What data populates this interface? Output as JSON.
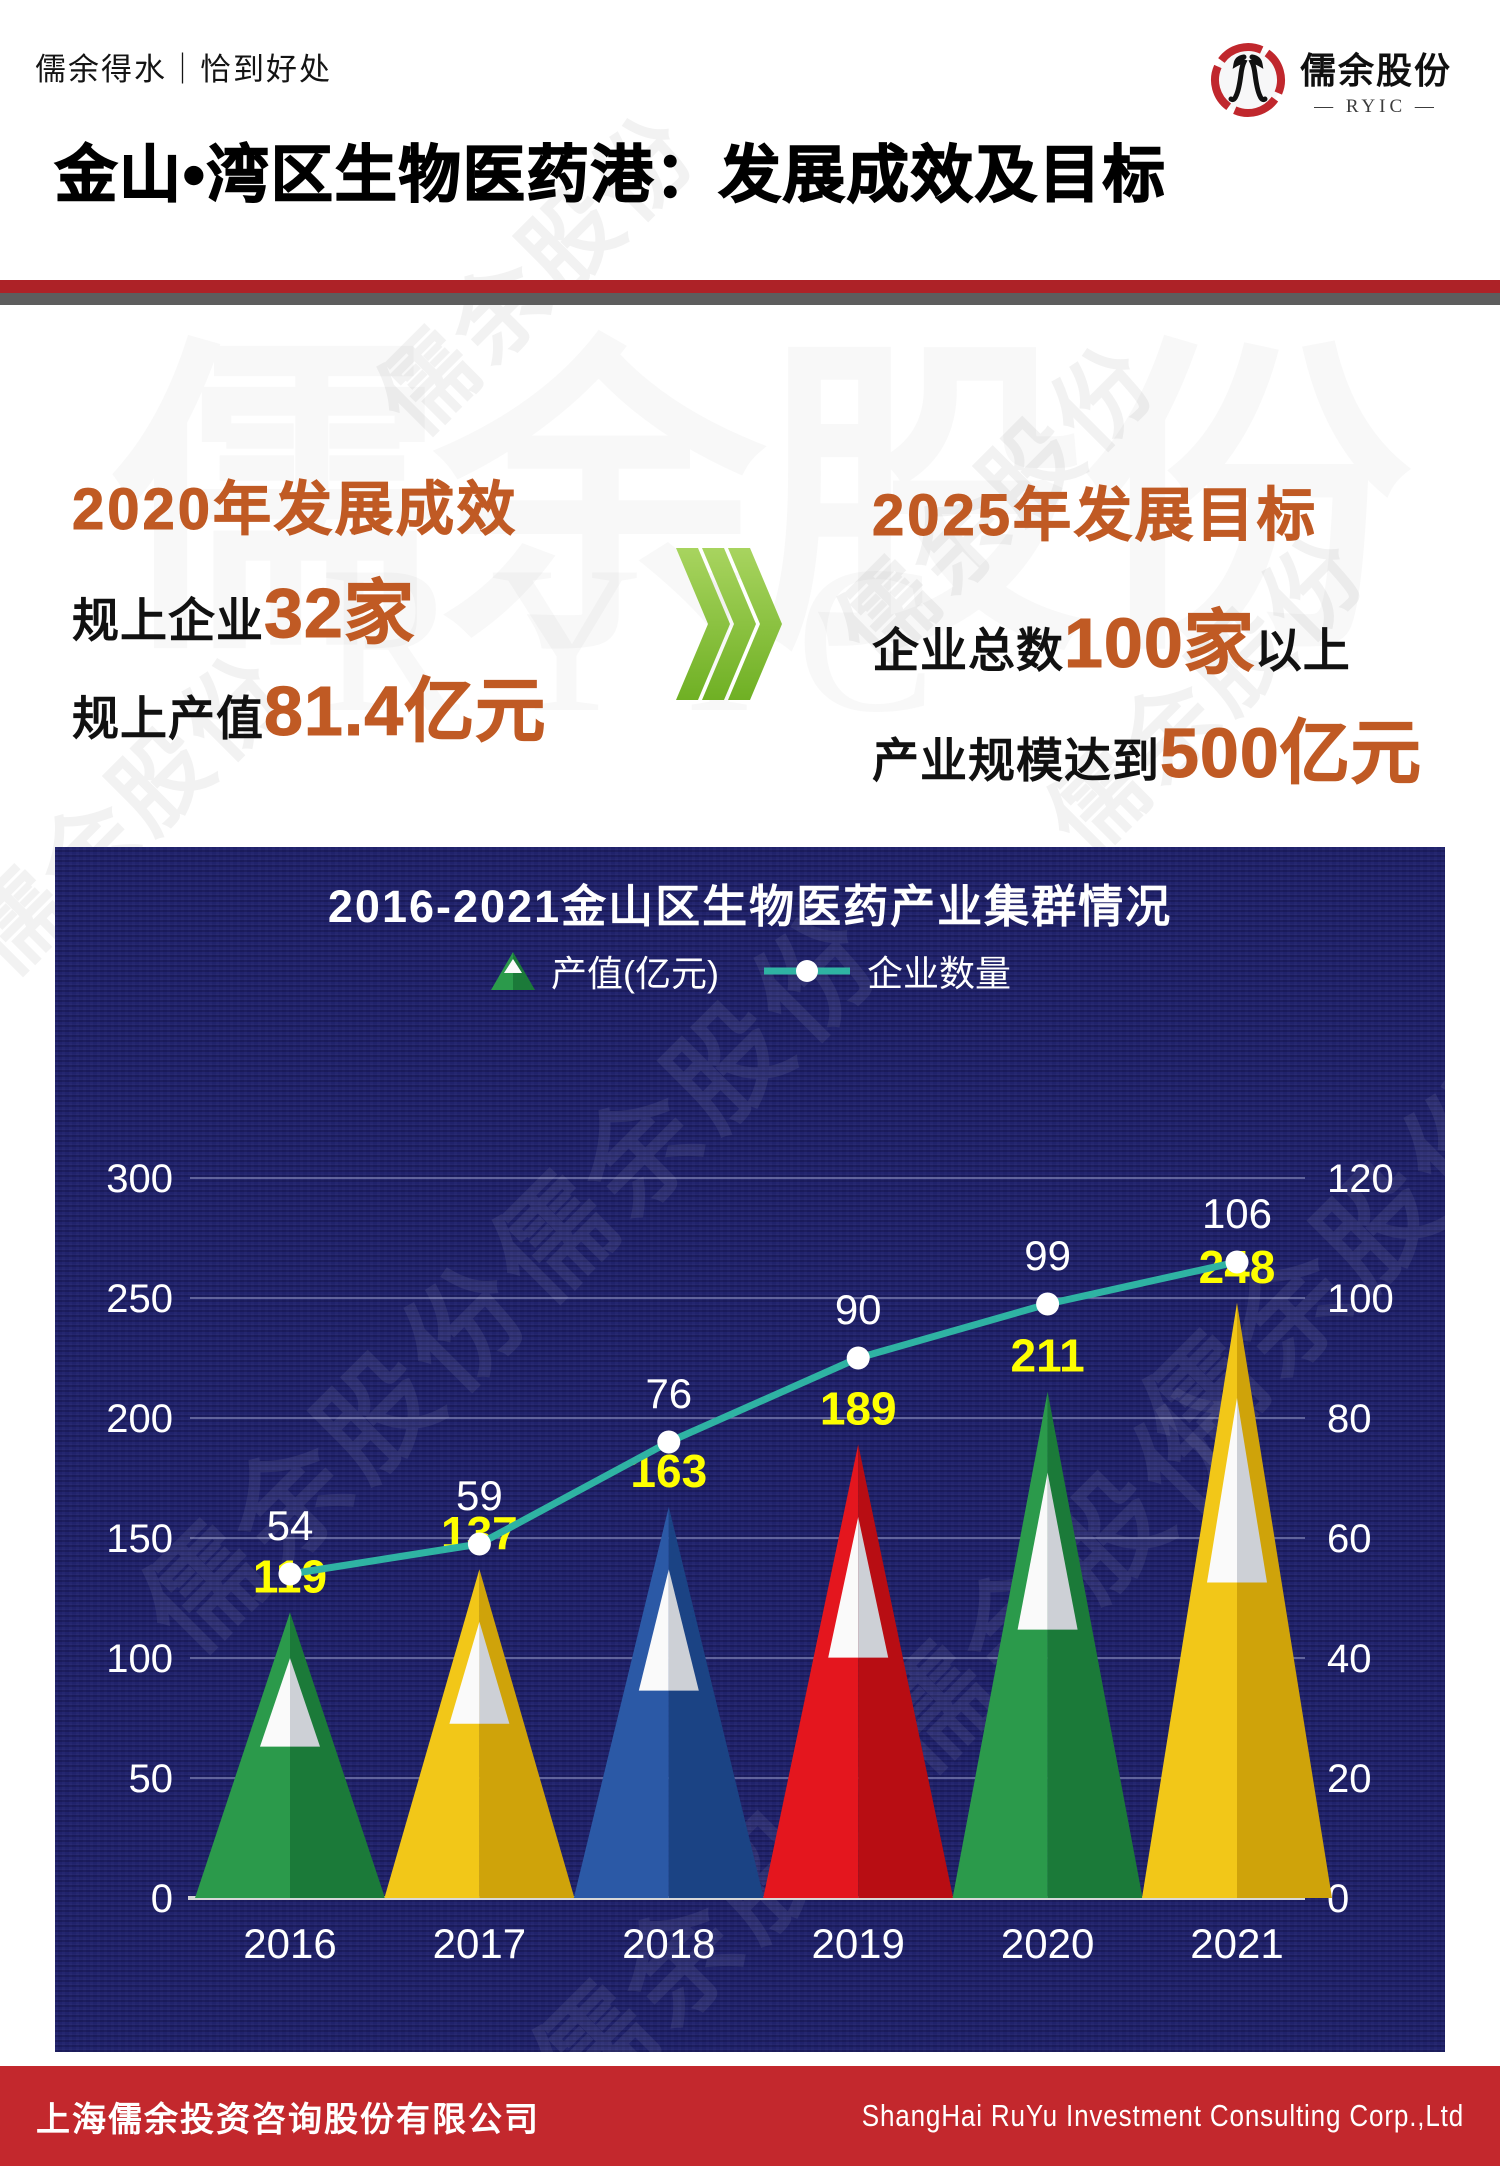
{
  "header": {
    "slogan": "儒余得水｜恰到好处",
    "logo_name": "儒余股份",
    "logo_sub": "— RYIC —"
  },
  "title": "金山•湾区生物医药港：发展成效及目标",
  "colors": {
    "accent": "#c05a24",
    "navy": "#20226b",
    "divider_red": "#ad2227",
    "divider_gray": "#5d5d5d",
    "footer_red": "#c3282d",
    "chevron_light": "#a8d45f",
    "chevron_dark": "#6fb024"
  },
  "watermark": {
    "cn": "儒余股份",
    "latin": "RYIC"
  },
  "sections": {
    "left": {
      "heading": "2020年发展成效",
      "rows": [
        {
          "segments": [
            {
              "text": "规上企业",
              "style": "dark"
            },
            {
              "text": "32家",
              "style": "accent"
            }
          ]
        },
        {
          "segments": [
            {
              "text": "规上产值",
              "style": "dark"
            },
            {
              "text": "81.4亿元",
              "style": "accent"
            }
          ]
        }
      ]
    },
    "right": {
      "heading": "2025年发展目标",
      "rows": [
        {
          "segments": [
            {
              "text": "企业总数",
              "style": "dark"
            },
            {
              "text": "100家",
              "style": "accent"
            },
            {
              "text": "以上",
              "style": "dark"
            }
          ]
        },
        {
          "segments": [
            {
              "text": "产业规模达到",
              "style": "dark"
            },
            {
              "text": "500亿元",
              "style": "accent"
            }
          ]
        }
      ]
    }
  },
  "chart_data": {
    "type": "bar+line",
    "title": "2016-2021金山区生物医药产业集群情况",
    "categories": [
      "2016",
      "2017",
      "2018",
      "2019",
      "2020",
      "2021"
    ],
    "series": [
      {
        "name": "产值(亿元)",
        "type": "triangle-bar",
        "axis": "left",
        "values": [
          119,
          137,
          163,
          189,
          211,
          248
        ],
        "colors": [
          "green",
          "gold",
          "blue",
          "red",
          "green",
          "gold"
        ],
        "label_color": "#feff00"
      },
      {
        "name": "企业数量",
        "type": "line",
        "axis": "right",
        "values": [
          54,
          59,
          76,
          90,
          99,
          106
        ],
        "color": "#2fb3a3",
        "marker_color": "#ffffff",
        "label_color": "#ffffff"
      }
    ],
    "left_axis": {
      "min": 0,
      "max": 300,
      "step": 50
    },
    "right_axis": {
      "min": 0,
      "max": 120,
      "step": 20
    },
    "grid": true,
    "legend_position": "top",
    "background": "#20226b",
    "palette": {
      "green": {
        "light": "#2b9a4b",
        "dark": "#1b7a39"
      },
      "gold": {
        "light": "#f2c718",
        "dark": "#cfa30a"
      },
      "blue": {
        "light": "#2b59a6",
        "dark": "#1b4384"
      },
      "red": {
        "light": "#e4161e",
        "dark": "#b80d13"
      },
      "cap": {
        "light": "#fafafa",
        "dark": "#cdd0d6"
      }
    }
  },
  "footer": {
    "left": "上海儒余投资咨询股份有限公司",
    "right": "ShangHai RuYu Investment Consulting Corp.,Ltd"
  }
}
